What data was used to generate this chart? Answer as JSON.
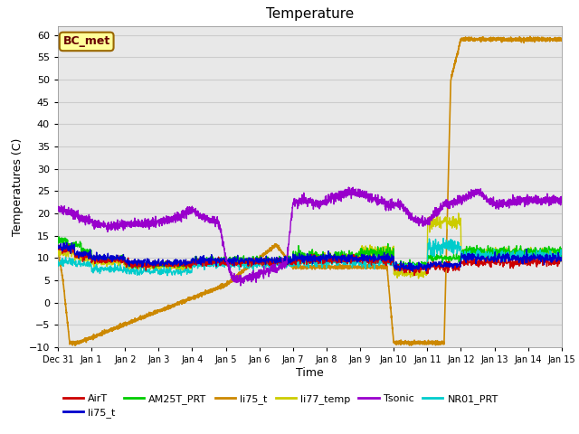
{
  "title": "Temperature",
  "ylabel": "Temperatures (C)",
  "xlabel": "Time",
  "ylim": [
    -10,
    62
  ],
  "xlim": [
    0,
    15
  ],
  "annotation_text": "BC_met",
  "annotation_bg": "#FFFF99",
  "annotation_border": "#996600",
  "annotation_text_color": "#660000",
  "grid_color": "#cccccc",
  "bg_color": "#e8e8e8",
  "series": {
    "AirT": {
      "color": "#cc0000",
      "lw": 1.0
    },
    "li75_t_b": {
      "color": "#0000cc",
      "lw": 1.0
    },
    "AM25T_PRT": {
      "color": "#00cc00",
      "lw": 1.0
    },
    "li75_t": {
      "color": "#cc8800",
      "lw": 1.2
    },
    "li77_temp": {
      "color": "#cccc00",
      "lw": 1.0
    },
    "Tsonic": {
      "color": "#9900cc",
      "lw": 1.0
    },
    "NR01_PRT": {
      "color": "#00cccc",
      "lw": 1.0
    }
  },
  "xtick_labels": [
    "Dec 31",
    "Jan 1",
    "Jan 2",
    "Jan 3",
    "Jan 4",
    "Jan 5",
    "Jan 6",
    "Jan 7",
    "Jan 8",
    "Jan 9",
    "Jan 10",
    "Jan 11",
    "Jan 12",
    "Jan 13",
    "Jan 14",
    "Jan 15"
  ],
  "xtick_positions": [
    0,
    1,
    2,
    3,
    4,
    5,
    6,
    7,
    8,
    9,
    10,
    11,
    12,
    13,
    14,
    15
  ],
  "ytick_positions": [
    -10,
    -5,
    0,
    5,
    10,
    15,
    20,
    25,
    30,
    35,
    40,
    45,
    50,
    55,
    60
  ],
  "li75_t_keypoints": [
    [
      0.0,
      12
    ],
    [
      0.15,
      5
    ],
    [
      0.35,
      -9
    ],
    [
      0.6,
      -9
    ],
    [
      5.0,
      4
    ],
    [
      6.5,
      13
    ],
    [
      7.0,
      8
    ],
    [
      9.8,
      8
    ],
    [
      10.0,
      -9
    ],
    [
      10.1,
      -9
    ],
    [
      11.5,
      -9
    ],
    [
      11.7,
      50
    ],
    [
      12.0,
      59
    ],
    [
      12.1,
      59
    ],
    [
      12.3,
      59
    ],
    [
      12.5,
      59
    ],
    [
      13.0,
      59
    ],
    [
      14.0,
      59
    ],
    [
      15.0,
      59
    ]
  ],
  "Tsonic_keypoints": [
    [
      0.0,
      21
    ],
    [
      0.3,
      20.5
    ],
    [
      1.0,
      18
    ],
    [
      1.5,
      17
    ],
    [
      2.0,
      17.5
    ],
    [
      3.0,
      18
    ],
    [
      3.5,
      19
    ],
    [
      4.0,
      21
    ],
    [
      4.2,
      19.5
    ],
    [
      4.8,
      18
    ],
    [
      5.0,
      10
    ],
    [
      5.2,
      5.5
    ],
    [
      5.5,
      5.2
    ],
    [
      6.8,
      8.5
    ],
    [
      7.0,
      22.5
    ],
    [
      7.3,
      23
    ],
    [
      7.8,
      22
    ],
    [
      8.2,
      23.5
    ],
    [
      8.8,
      25
    ],
    [
      9.2,
      24
    ],
    [
      9.8,
      22
    ],
    [
      10.2,
      22
    ],
    [
      10.6,
      18.5
    ],
    [
      11.0,
      18
    ],
    [
      11.5,
      22
    ],
    [
      12.0,
      23
    ],
    [
      12.5,
      25
    ],
    [
      13.0,
      22
    ],
    [
      13.5,
      22.5
    ],
    [
      14.0,
      23
    ],
    [
      15.0,
      23
    ]
  ]
}
